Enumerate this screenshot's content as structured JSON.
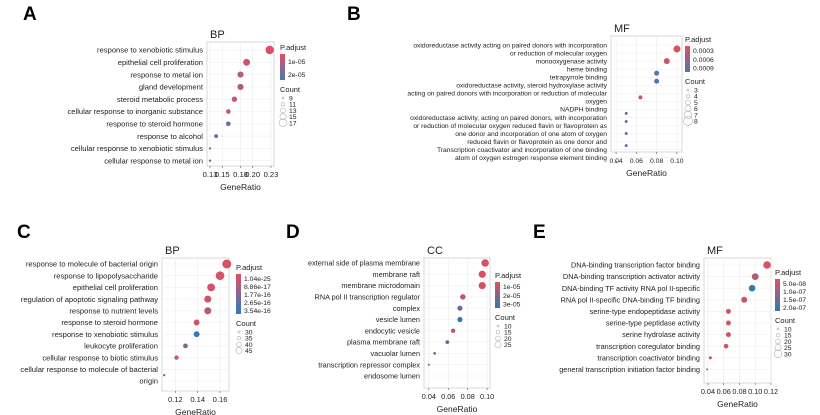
{
  "figure": {
    "panels": [
      "A",
      "B",
      "C",
      "D",
      "E"
    ]
  },
  "chart_data": [
    {
      "panel": "A",
      "type": "scatter",
      "subtype": "dotplot",
      "title": "BP",
      "xlabel": "GeneRatio",
      "ylabel": "",
      "xlim": [
        0.125,
        0.235
      ],
      "xticks": [
        0.13,
        0.15,
        0.18,
        0.2,
        0.23
      ],
      "xtick_labels": [
        "0.13",
        "0.15",
        "0.18",
        "0.20",
        "0.23"
      ],
      "grid": true,
      "legend_position": "right",
      "color_legend": {
        "title": "P.adjust",
        "labels": [
          "1e-05",
          "2e-05"
        ],
        "low_color": "#e05060",
        "high_color": "#4a78b8"
      },
      "size_legend": {
        "title": "Count",
        "labels": [
          "9",
          "11",
          "13",
          "15",
          "17"
        ]
      },
      "categories": [
        "response to xenobiotic stimulus",
        "epithelial cell proliferation",
        "response to metal ion",
        "gland development",
        "steroid metabolic process",
        "cellular response to inorganic substance",
        "response to steroid hormone",
        "response to alcohol",
        "cellular response to xenobiotic stimulus",
        "cellular response to metal ion"
      ],
      "x": [
        0.228,
        0.19,
        0.18,
        0.18,
        0.17,
        0.16,
        0.16,
        0.14,
        0.13,
        0.13
      ],
      "color_fraction": [
        0.05,
        0.15,
        0.25,
        0.3,
        0.2,
        0.15,
        0.8,
        0.7,
        0.75,
        0.8
      ],
      "size": [
        17,
        15,
        14,
        14,
        13,
        12,
        12,
        11,
        9,
        9
      ]
    },
    {
      "panel": "B",
      "type": "scatter",
      "subtype": "dotplot",
      "title": "MF",
      "xlabel": "GeneRatio",
      "ylabel": "",
      "xlim": [
        0.035,
        0.105
      ],
      "xticks": [
        0.04,
        0.06,
        0.08,
        0.1
      ],
      "xtick_labels": [
        "0.04",
        "0.06",
        "0.08",
        "0.10"
      ],
      "grid": true,
      "legend_position": "right",
      "color_legend": {
        "title": "P.adjust",
        "labels": [
          "0.0003",
          "0.0006",
          "0.0009"
        ],
        "low_color": "#e05060",
        "high_color": "#4a78b8"
      },
      "size_legend": {
        "title": "Count",
        "labels": [
          "3",
          "4",
          "5",
          "6",
          "7",
          "8"
        ]
      },
      "label_lines": [
        "oxidoreductase activity acting on paired donors with incorporation",
        "or reduction of molecular oxygen",
        "monooxygenase activity",
        "heme binding",
        "tetrapyrrole binding",
        "oxidoreductase activity, steroid hydroxylase activity",
        "acting on paired donors with incorporation or reduction of molecular",
        "oxygen",
        "NADPH binding",
        "oxidoreductase activity, acting on paired donors, with incorporation",
        "or reduction of molecular oxygen reduced flavin or flavoprotein as",
        "one donor and incorporation of one atom of oxygen",
        "reduced flavin or flavoprotein as one donor and",
        "Transcription coactivator and incorporation of one binding",
        "atom of oxygen estrogen response element binding"
      ],
      "points": [
        {
          "x": 0.1,
          "color_fraction": 0.05,
          "size": 8
        },
        {
          "x": 0.09,
          "color_fraction": 0.15,
          "size": 7
        },
        {
          "x": 0.08,
          "color_fraction": 0.95,
          "size": 6
        },
        {
          "x": 0.08,
          "color_fraction": 0.95,
          "size": 6
        },
        {
          "x": 0.064,
          "color_fraction": 0.1,
          "size": 5
        },
        {
          "x": 0.05,
          "color_fraction": 0.8,
          "size": 4
        },
        {
          "x": 0.05,
          "color_fraction": 0.8,
          "size": 4
        },
        {
          "x": 0.05,
          "color_fraction": 0.8,
          "size": 4
        },
        {
          "x": 0.05,
          "color_fraction": 0.8,
          "size": 4
        },
        {
          "x": 0.04,
          "color_fraction": 0.8,
          "size": 3
        }
      ],
      "point_rows": [
        0.5,
        2,
        3.5,
        4.5,
        6.5,
        8.5,
        9.5,
        11,
        12.5,
        14.5
      ]
    },
    {
      "panel": "C",
      "type": "scatter",
      "subtype": "dotplot",
      "title": "BP",
      "xlabel": "GeneRatio",
      "ylabel": "",
      "xlim": [
        0.108,
        0.168
      ],
      "xticks": [
        0.12,
        0.14,
        0.16
      ],
      "xtick_labels": [
        "0.12",
        "0.14",
        "0.16"
      ],
      "grid": true,
      "legend_position": "right",
      "color_legend": {
        "title": "P.adjust",
        "labels": [
          "1.04e-25",
          "8.86e-17",
          "1.77e-16",
          "2.65e-16",
          "3.54e-16"
        ],
        "low_color": "#e05060",
        "high_color": "#2f7ac0"
      },
      "size_legend": {
        "title": "Count",
        "labels": [
          "30",
          "35",
          "40",
          "45"
        ]
      },
      "label_lines": [
        "response to molecule of bacterial origin",
        "response to lipopolysaccharide",
        "epithelial cell proliferation",
        "regulation of apoptotic signaling pathway",
        "response to nutrient levels",
        "response to steroid hormone",
        "response to xenobiotic stimulus",
        "leukocyte proliferation",
        "cellular response to biotic stimulus",
        "cellular response to molecule of bacterial",
        "origin"
      ],
      "points": [
        {
          "x": 0.166,
          "color_fraction": 0.05,
          "size": 45
        },
        {
          "x": 0.16,
          "color_fraction": 0.05,
          "size": 44
        },
        {
          "x": 0.152,
          "color_fraction": 0.08,
          "size": 42
        },
        {
          "x": 0.149,
          "color_fraction": 0.1,
          "size": 40
        },
        {
          "x": 0.149,
          "color_fraction": 0.25,
          "size": 40
        },
        {
          "x": 0.139,
          "color_fraction": 0.1,
          "size": 37
        },
        {
          "x": 0.139,
          "color_fraction": 1.0,
          "size": 37
        },
        {
          "x": 0.129,
          "color_fraction": 0.5,
          "size": 34
        },
        {
          "x": 0.121,
          "color_fraction": 0.1,
          "size": 33
        },
        {
          "x": 0.11,
          "color_fraction": 0.6,
          "size": 28
        }
      ],
      "point_rows": [
        0,
        1,
        2,
        3,
        4,
        5,
        6,
        7,
        8,
        9.5
      ]
    },
    {
      "panel": "D",
      "type": "scatter",
      "subtype": "dotplot",
      "title": "CC",
      "xlabel": "GeneRatio",
      "ylabel": "",
      "xlim": [
        0.035,
        0.103
      ],
      "xticks": [
        0.04,
        0.06,
        0.08,
        0.1
      ],
      "xtick_labels": [
        "0.04",
        "0.06",
        "0.08",
        "0.10"
      ],
      "grid": true,
      "legend_position": "right",
      "color_legend": {
        "title": "P.adjust",
        "labels": [
          "1e-05",
          "2e-05",
          "3e-05"
        ],
        "low_color": "#e05060",
        "high_color": "#2f7ab0"
      },
      "size_legend": {
        "title": "Count",
        "labels": [
          "10",
          "15",
          "20",
          "25"
        ]
      },
      "label_lines": [
        "external side of plasma membrane",
        "membrane raft",
        "membrane microdomain",
        "RNA pol II transcription regulator",
        "complex",
        "vesicle lumen",
        "endocytic vesicle",
        "plasma membrane raft",
        "vacuolar lumen",
        "transcription repressor complex",
        "endosome lumen"
      ],
      "points": [
        {
          "x": 0.098,
          "color_fraction": 0.05,
          "size": 25
        },
        {
          "x": 0.095,
          "color_fraction": 0.05,
          "size": 24
        },
        {
          "x": 0.095,
          "color_fraction": 0.08,
          "size": 24
        },
        {
          "x": 0.075,
          "color_fraction": 0.2,
          "size": 19
        },
        {
          "x": 0.072,
          "color_fraction": 0.6,
          "size": 18
        },
        {
          "x": 0.072,
          "color_fraction": 1.0,
          "size": 18
        },
        {
          "x": 0.065,
          "color_fraction": 0.15,
          "size": 16
        },
        {
          "x": 0.059,
          "color_fraction": 0.8,
          "size": 14
        },
        {
          "x": 0.046,
          "color_fraction": 0.75,
          "size": 11
        },
        {
          "x": 0.04,
          "color_fraction": 0.5,
          "size": 9
        }
      ],
      "point_rows": [
        0,
        1,
        2,
        3,
        4,
        5,
        6,
        7,
        8,
        9
      ]
    },
    {
      "panel": "E",
      "type": "scatter",
      "subtype": "dotplot",
      "title": "MF",
      "xlabel": "GeneRatio",
      "ylabel": "",
      "xlim": [
        0.035,
        0.12
      ],
      "xticks": [
        0.04,
        0.06,
        0.08,
        0.1,
        0.12
      ],
      "xtick_labels": [
        "0.04",
        "0.06",
        "0.08",
        "0.10",
        "0.12"
      ],
      "grid": true,
      "legend_position": "right",
      "color_legend": {
        "title": "P.adjust",
        "labels": [
          "5.0e-08",
          "1.0e-07",
          "1.5e-07",
          "2.0e-07"
        ],
        "low_color": "#e05060",
        "high_color": "#2f7ab0"
      },
      "size_legend": {
        "title": "Count",
        "labels": [
          "10",
          "15",
          "20",
          "25",
          "30"
        ]
      },
      "label_lines": [
        "DNA-binding transcription factor binding",
        "DNA-binding transcription activator activity",
        "DNA-binding TF activity RNA pol II-specific",
        "RNA pol II-specific DNA-binding TF binding",
        "serine-type endopeptidase activity",
        "serine-type peptidase activity",
        "serine hydrolase activity",
        "transcription coregulator binding",
        "transcription coactivator binding",
        "general transcription initiation factor binding"
      ],
      "points": [
        {
          "x": 0.115,
          "color_fraction": 0.05,
          "size": 30
        },
        {
          "x": 0.1,
          "color_fraction": 0.25,
          "size": 27
        },
        {
          "x": 0.096,
          "color_fraction": 1.0,
          "size": 26
        },
        {
          "x": 0.086,
          "color_fraction": 0.15,
          "size": 24
        },
        {
          "x": 0.066,
          "color_fraction": 0.1,
          "size": 20
        },
        {
          "x": 0.066,
          "color_fraction": 0.1,
          "size": 20
        },
        {
          "x": 0.066,
          "color_fraction": 0.1,
          "size": 20
        },
        {
          "x": 0.063,
          "color_fraction": 0.1,
          "size": 19
        },
        {
          "x": 0.043,
          "color_fraction": 0.1,
          "size": 13
        },
        {
          "x": 0.039,
          "color_fraction": 0.5,
          "size": 9
        }
      ],
      "point_rows": [
        0,
        1,
        2,
        3,
        4,
        5,
        6,
        7,
        8,
        9
      ]
    }
  ]
}
